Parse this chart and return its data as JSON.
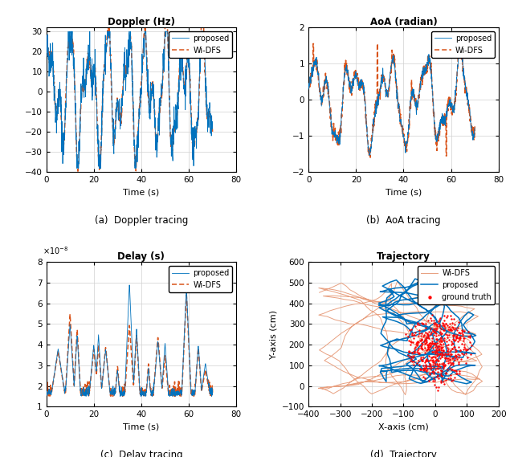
{
  "fig_width": 6.4,
  "fig_height": 5.69,
  "dpi": 100,
  "background_color": "#ffffff",
  "blue_color": "#0072BD",
  "orange_color": "#D95319",
  "salmon_color": "#E8A080",
  "red_color": "#FF0000",
  "titles": [
    "Doppler (Hz)",
    "AoA (radian)",
    "Delay (s)",
    "Trajectory"
  ],
  "xlabels": [
    "Time (s)",
    "Time (s)",
    "Time (s)",
    "X-axis (cm)"
  ],
  "ylabels": [
    "",
    "",
    "",
    "Y-axis (cm)"
  ],
  "captions": [
    "(a)  Doppler tracing",
    "(b)  AoA tracing",
    "(c)  Delay tracing",
    "(d)  Trajectory"
  ],
  "doppler_xlim": [
    0,
    80
  ],
  "doppler_ylim": [
    -40,
    32
  ],
  "doppler_yticks": [
    -40,
    -30,
    -20,
    -10,
    0,
    10,
    20,
    30
  ],
  "aoa_xlim": [
    0,
    80
  ],
  "aoa_ylim": [
    -2,
    2
  ],
  "aoa_yticks": [
    -2,
    -1,
    0,
    1,
    2
  ],
  "delay_xlim": [
    0,
    80
  ],
  "delay_ylim": [
    1e-08,
    8e-08
  ],
  "delay_yticks": [
    1e-08,
    2e-08,
    3e-08,
    4e-08,
    5e-08,
    6e-08,
    7e-08,
    8e-08
  ],
  "traj_xlim": [
    -400,
    200
  ],
  "traj_ylim": [
    -100,
    600
  ],
  "traj_xticks": [
    -400,
    -300,
    -200,
    -100,
    0,
    100,
    200
  ],
  "traj_yticks": [
    -100,
    0,
    100,
    200,
    300,
    400,
    500,
    600
  ]
}
